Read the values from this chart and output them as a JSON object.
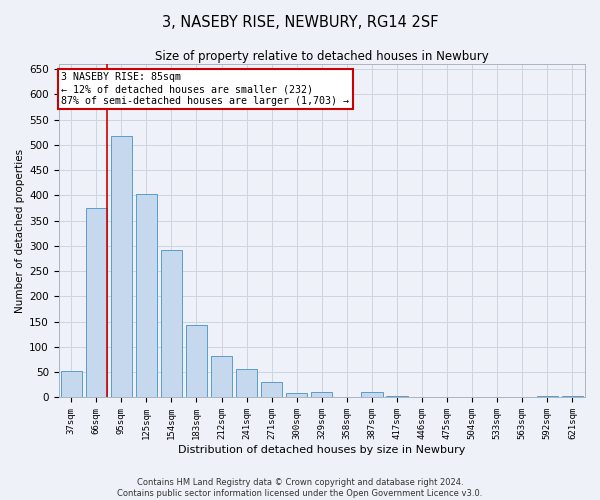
{
  "title": "3, NASEBY RISE, NEWBURY, RG14 2SF",
  "subtitle": "Size of property relative to detached houses in Newbury",
  "xlabel": "Distribution of detached houses by size in Newbury",
  "ylabel": "Number of detached properties",
  "categories": [
    "37sqm",
    "66sqm",
    "95sqm",
    "125sqm",
    "154sqm",
    "183sqm",
    "212sqm",
    "241sqm",
    "271sqm",
    "300sqm",
    "329sqm",
    "358sqm",
    "387sqm",
    "417sqm",
    "446sqm",
    "475sqm",
    "504sqm",
    "533sqm",
    "563sqm",
    "592sqm",
    "621sqm"
  ],
  "values": [
    52,
    375,
    518,
    402,
    293,
    143,
    82,
    57,
    30,
    9,
    11,
    0,
    11,
    2,
    1,
    0,
    0,
    0,
    0,
    3,
    2
  ],
  "bar_color": "#c5d8ed",
  "bar_edge_color": "#5a9dc8",
  "grid_color": "#ccd5e0",
  "annotation_text": "3 NASEBY RISE: 85sqm\n← 12% of detached houses are smaller (232)\n87% of semi-detached houses are larger (1,703) →",
  "annotation_box_color": "#ffffff",
  "annotation_box_edge": "#cc0000",
  "marker_line_color": "#cc0000",
  "bg_color": "#eef2f8",
  "footer_line1": "Contains HM Land Registry data © Crown copyright and database right 2024.",
  "footer_line2": "Contains public sector information licensed under the Open Government Licence v3.0.",
  "ylim": [
    0,
    660
  ],
  "yticks": [
    0,
    50,
    100,
    150,
    200,
    250,
    300,
    350,
    400,
    450,
    500,
    550,
    600,
    650
  ]
}
